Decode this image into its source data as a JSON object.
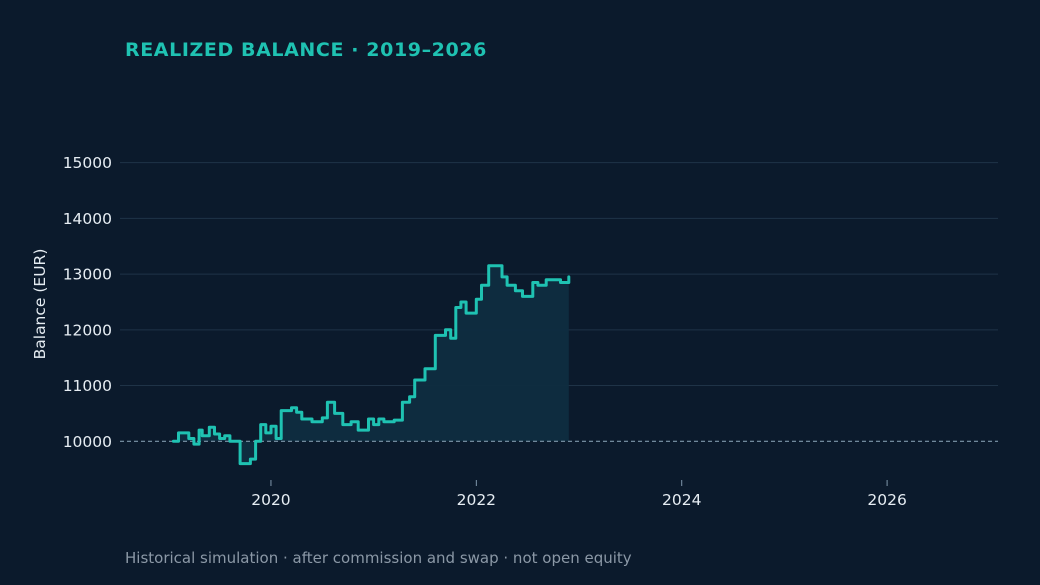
{
  "chart_data": {
    "type": "area",
    "title": "REALIZED BALANCE · 2019–2026",
    "caption": "Historical simulation · after commission and swap · not open equity",
    "ylabel": "Balance (EUR)",
    "xlabel": "",
    "x_ticks": [
      {
        "label": "2020",
        "value": 2020
      },
      {
        "label": "2022",
        "value": 2022
      },
      {
        "label": "2024",
        "value": 2024
      },
      {
        "label": "2026",
        "value": 2026
      }
    ],
    "y_ticks": [
      10000,
      11000,
      12000,
      13000,
      14000,
      15000
    ],
    "xlim": [
      2018.53,
      2027.08
    ],
    "ylim": [
      9305,
      16340
    ],
    "baseline": 10000,
    "grid": true,
    "colors": {
      "line": "#1fc2b2",
      "fill": "#0f2d40",
      "grid": "#1f3347",
      "baseline": "#7f98ab",
      "background": "#0b1a2c"
    },
    "series": [
      {
        "x": [
          2019.05,
          2019.1,
          2019.2,
          2019.25,
          2019.3,
          2019.33,
          2019.4,
          2019.45,
          2019.5,
          2019.55,
          2019.6,
          2019.7,
          2019.8,
          2019.85,
          2019.9,
          2019.95,
          2020.0,
          2020.05,
          2020.1,
          2020.2,
          2020.25,
          2020.3,
          2020.4,
          2020.5,
          2020.55,
          2020.62,
          2020.7,
          2020.78,
          2020.85,
          2020.95,
          2021.0,
          2021.05,
          2021.1,
          2021.2,
          2021.28,
          2021.35,
          2021.4,
          2021.5,
          2021.6,
          2021.7,
          2021.75,
          2021.8,
          2021.85,
          2021.9,
          2022.0,
          2022.05,
          2022.12,
          2022.25,
          2022.3,
          2022.38,
          2022.45,
          2022.55,
          2022.6,
          2022.68,
          2022.82,
          2022.9
        ],
        "y": [
          10000,
          10150,
          10050,
          9950,
          10200,
          10100,
          10250,
          10130,
          10050,
          10100,
          10000,
          9600,
          9680,
          10000,
          10300,
          10150,
          10270,
          10050,
          10550,
          10600,
          10520,
          10400,
          10350,
          10420,
          10700,
          10500,
          10300,
          10350,
          10200,
          10400,
          10300,
          10400,
          10350,
          10380,
          10700,
          10800,
          11100,
          11300,
          11900,
          12000,
          11850,
          12400,
          12500,
          12300,
          12550,
          12800,
          13150,
          12950,
          12800,
          12700,
          12600,
          12850,
          12800,
          12900,
          12850,
          12950
        ]
      }
    ]
  }
}
